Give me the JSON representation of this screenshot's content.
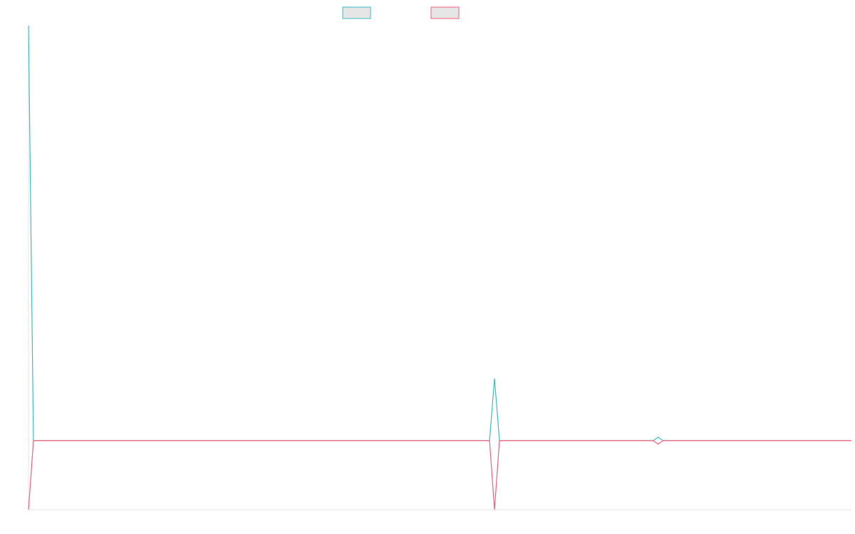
{
  "chart_data": {
    "type": "line",
    "title": "",
    "xlabel": "",
    "ylabel": "",
    "grid": false,
    "legend_position": "top-center",
    "x": [
      0,
      1,
      2,
      3,
      4,
      5,
      6,
      7,
      8,
      9,
      10,
      11,
      12,
      13,
      14,
      15,
      16,
      17,
      18,
      19,
      20,
      21,
      22,
      23,
      24,
      25,
      26,
      27,
      28,
      29,
      30,
      31,
      32,
      33,
      34,
      35,
      36,
      37,
      38,
      39,
      40,
      41,
      42,
      43,
      44,
      45,
      46,
      47,
      48,
      49,
      50,
      51,
      52,
      53,
      54,
      55,
      56,
      57,
      58,
      59,
      60,
      61,
      62,
      63,
      64,
      65,
      66,
      67,
      68,
      69,
      70,
      71,
      72,
      73,
      74,
      75,
      76,
      77,
      78,
      79,
      80,
      81,
      82,
      83,
      84,
      85,
      86,
      87,
      88,
      89,
      90,
      91,
      92,
      93,
      94,
      95,
      96,
      97,
      98,
      99,
      100,
      101,
      102,
      103,
      104,
      105,
      106,
      107,
      108,
      109,
      110,
      111,
      112,
      113,
      114,
      115,
      116,
      117,
      118,
      119,
      120,
      121,
      122,
      123,
      124,
      125,
      126,
      127,
      128,
      129,
      130,
      131,
      132,
      133,
      134,
      135,
      136,
      137,
      138,
      139,
      140,
      141,
      142,
      143,
      144,
      145,
      146,
      147,
      148,
      149,
      150,
      151,
      152,
      153,
      154,
      155,
      156,
      157,
      158,
      159,
      160,
      161,
      162,
      163,
      164,
      165,
      166,
      167,
      168,
      169,
      170
    ],
    "ylim": [
      -1,
      6
    ],
    "series": [
      {
        "color": "#3bbfbf",
        "spikes": {
          "0": 6,
          "94": 0.9,
          "127": 0.05
        },
        "baseline": 0
      },
      {
        "color": "#f0617f",
        "spikes": {
          "0": -1,
          "94": -1,
          "127": -0.05
        },
        "baseline": 0
      }
    ],
    "x_range": [
      0,
      166
    ]
  },
  "legend": {
    "items": [
      {
        "color": "#3bbfbf"
      },
      {
        "color": "#f0617f"
      }
    ]
  },
  "axis_color": "#e6e6e6"
}
